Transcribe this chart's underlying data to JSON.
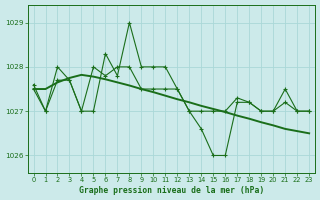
{
  "title": "Graphe pression niveau de la mer (hPa)",
  "bg_color": "#cceaea",
  "grid_color": "#aad8d8",
  "line_color": "#1a6e1a",
  "x_min": 0,
  "x_max": 23,
  "y_min": 1025.6,
  "y_max": 1029.4,
  "yticks": [
    1026,
    1027,
    1028,
    1029
  ],
  "xticks": [
    0,
    1,
    2,
    3,
    4,
    5,
    6,
    7,
    8,
    9,
    10,
    11,
    12,
    13,
    14,
    15,
    16,
    17,
    18,
    19,
    20,
    21,
    22,
    23
  ],
  "series1": [
    1027.5,
    1027.0,
    1028.0,
    1027.7,
    1027.0,
    1027.0,
    1028.3,
    1027.8,
    1029.0,
    1028.0,
    1028.0,
    1028.0,
    1027.5,
    1027.0,
    1026.6,
    1026.0,
    1026.0,
    1027.2,
    1027.2,
    1027.0,
    1027.0,
    1027.5,
    1027.0,
    1027.0
  ],
  "series2": [
    1027.5,
    1027.5,
    1027.65,
    1027.75,
    1027.82,
    1027.78,
    1027.72,
    1027.65,
    1027.58,
    1027.5,
    1027.43,
    1027.35,
    1027.27,
    1027.2,
    1027.12,
    1027.05,
    1026.98,
    1026.9,
    1026.83,
    1026.75,
    1026.68,
    1026.6,
    1026.55,
    1026.5
  ],
  "series3": [
    1027.6,
    1027.0,
    1027.7,
    1027.7,
    1027.0,
    1028.0,
    1027.8,
    1028.0,
    1028.0,
    1027.5,
    1027.5,
    1027.5,
    1027.5,
    1027.0,
    1027.0,
    1027.0,
    1027.0,
    1027.3,
    1027.2,
    1027.0,
    1027.0,
    1027.2,
    1027.0,
    1027.0
  ]
}
